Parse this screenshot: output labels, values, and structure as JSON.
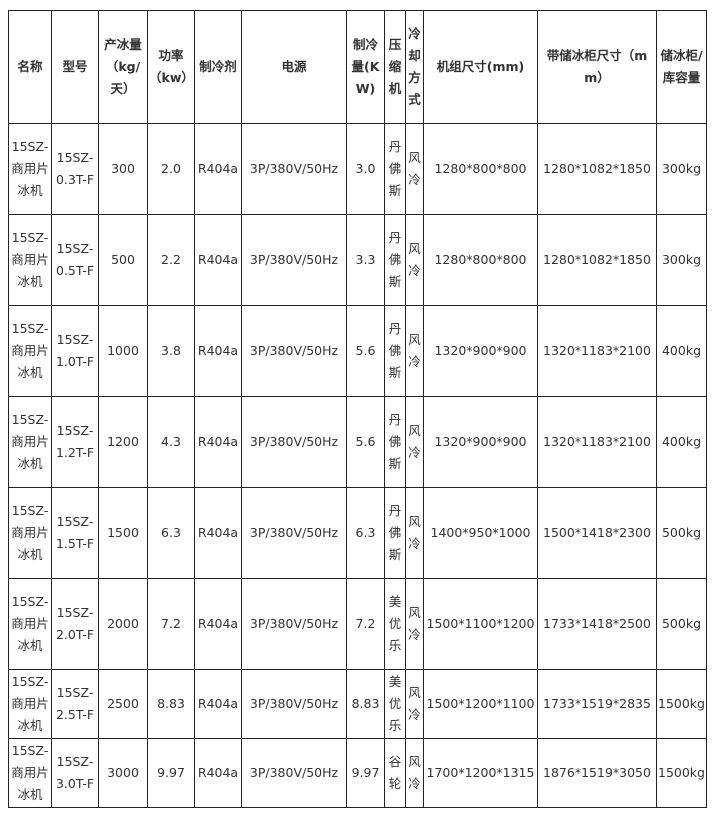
{
  "table": {
    "headers": [
      "名称",
      "型号",
      "产冰量（kg/天）",
      "功率（kw）",
      "制冷剂",
      "电源",
      "制冷量(KW)",
      "压缩机",
      "冷却方式",
      "机组尺寸(mm)",
      "带储冰柜尺寸（mm）",
      "储冰柜/库容量"
    ],
    "rows": [
      [
        "15SZ-商用片冰机",
        "15SZ-0.3T-F",
        "300",
        "2.0",
        "R404a",
        "3P/380V/50Hz",
        "3.0",
        "丹佛斯",
        "风冷",
        "1280*800*800",
        "1280*1082*1850",
        "300kg"
      ],
      [
        "15SZ-商用片冰机",
        "15SZ-0.5T-F",
        "500",
        "2.2",
        "R404a",
        "3P/380V/50Hz",
        "3.3",
        "丹佛斯",
        "风冷",
        "1280*800*800",
        "1280*1082*1850",
        "300kg"
      ],
      [
        "15SZ-商用片冰机",
        "15SZ-1.0T-F",
        "1000",
        "3.8",
        "R404a",
        "3P/380V/50Hz",
        "5.6",
        "丹佛斯",
        "风冷",
        "1320*900*900",
        "1320*1183*2100",
        "400kg"
      ],
      [
        "15SZ-商用片冰机",
        "15SZ-1.2T-F",
        "1200",
        "4.3",
        "R404a",
        "3P/380V/50Hz",
        "5.6",
        "丹佛斯",
        "风冷",
        "1320*900*900",
        "1320*1183*2100",
        "400kg"
      ],
      [
        "15SZ-商用片冰机",
        "15SZ-1.5T-F",
        "1500",
        "6.3",
        "R404a",
        "3P/380V/50Hz",
        "6.3",
        "丹佛斯",
        "风冷",
        "1400*950*1000",
        "1500*1418*2300",
        "500kg"
      ],
      [
        "15SZ-商用片冰机",
        "15SZ-2.0T-F",
        "2000",
        "7.2",
        "R404a",
        "3P/380V/50Hz",
        "7.2",
        "美优乐",
        "风冷",
        "1500*1100*1200",
        "1733*1418*2500",
        "500kg"
      ],
      [
        "15SZ-商用片冰机",
        "15SZ-2.5T-F",
        "2500",
        "8.83",
        "R404a",
        "3P/380V/50Hz",
        "8.83",
        "美优乐",
        "风冷",
        "1500*1200*1100",
        "1733*1519*2835",
        "1500kg"
      ],
      [
        "15SZ-商用片冰机",
        "15SZ-3.0T-F",
        "3000",
        "9.97",
        "R404a",
        "3P/380V/50Hz",
        "9.97",
        "谷轮",
        "风冷",
        "1700*1200*1315",
        "1876*1519*3050",
        "1500kg"
      ]
    ]
  }
}
